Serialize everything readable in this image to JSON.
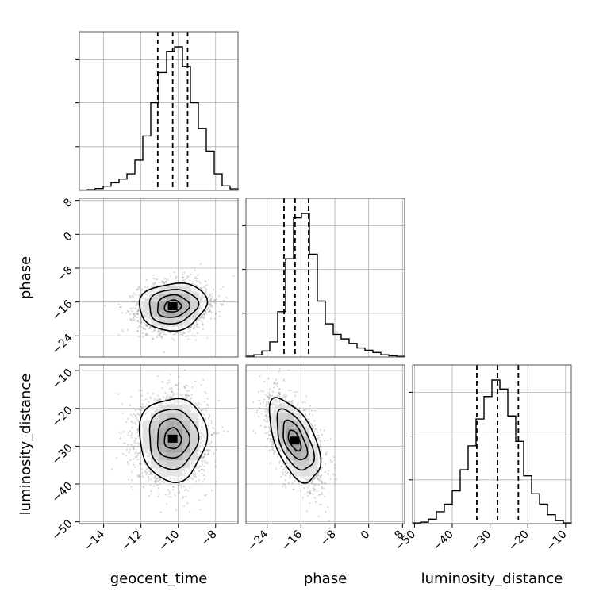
{
  "chart_data": {
    "type": "corner",
    "parameters": [
      "geocent_time",
      "phase",
      "luminosity_distance"
    ],
    "axis_labels": {
      "x": [
        "geocent_time",
        "phase",
        "luminosity_distance"
      ],
      "y": [
        "phase",
        "luminosity_distance"
      ]
    },
    "ranges": {
      "geocent_time": [
        -15.3,
        -6.8
      ],
      "phase": [
        -29,
        8.5
      ],
      "luminosity_distance": [
        -50.5,
        -8.5
      ]
    },
    "ticks": {
      "geocent_time": [
        -14,
        -12,
        -10,
        -8
      ],
      "phase": [
        -24,
        -16,
        -8,
        0,
        8
      ],
      "luminosity_distance": [
        -50,
        -40,
        -30,
        -20,
        -10
      ]
    },
    "quantiles": {
      "geocent_time": [
        -11.1,
        -10.3,
        -9.5
      ],
      "phase": [
        -20.0,
        -17.4,
        -14.2
      ],
      "luminosity_distance": [
        -33.5,
        -28.0,
        -22.5
      ]
    },
    "histograms": {
      "geocent_time": {
        "edges": [
          -15.3,
          -14.875,
          -14.45,
          -14.025,
          -13.6,
          -13.175,
          -12.75,
          -12.325,
          -11.9,
          -11.475,
          -11.05,
          -10.625,
          -10.2,
          -9.775,
          -9.35,
          -8.925,
          -8.5,
          -8.075,
          -7.65,
          -7.225,
          -6.8
        ],
        "counts": [
          0.002,
          0.005,
          0.012,
          0.028,
          0.05,
          0.075,
          0.11,
          0.2,
          0.36,
          0.58,
          0.78,
          0.92,
          0.95,
          0.82,
          0.58,
          0.41,
          0.26,
          0.11,
          0.03,
          0.01
        ]
      },
      "phase": {
        "edges": [
          -29,
          -27.125,
          -25.25,
          -23.375,
          -21.5,
          -19.625,
          -17.75,
          -15.875,
          -14.0,
          -12.125,
          -10.25,
          -8.375,
          -6.5,
          -4.625,
          -2.75,
          -0.875,
          1.0,
          2.875,
          4.75,
          6.625,
          8.5
        ],
        "counts": [
          0.005,
          0.015,
          0.04,
          0.1,
          0.3,
          0.65,
          0.92,
          0.95,
          0.68,
          0.37,
          0.22,
          0.15,
          0.12,
          0.09,
          0.06,
          0.045,
          0.03,
          0.015,
          0.008,
          0.004
        ]
      },
      "luminosity_distance": {
        "edges": [
          -50.5,
          -48.4,
          -46.3,
          -44.2,
          -42.1,
          -40.0,
          -37.9,
          -35.8,
          -33.7,
          -31.6,
          -29.5,
          -27.4,
          -25.3,
          -23.2,
          -21.1,
          -19.0,
          -16.9,
          -14.8,
          -12.7,
          -10.6,
          -8.5
        ],
        "counts": [
          0.005,
          0.01,
          0.03,
          0.08,
          0.13,
          0.22,
          0.36,
          0.52,
          0.7,
          0.85,
          0.96,
          0.9,
          0.72,
          0.55,
          0.32,
          0.2,
          0.13,
          0.06,
          0.02,
          0.005
        ]
      }
    },
    "joint": {
      "phase_vs_geocent_time": {
        "mean": [
          -10.3,
          -17.0
        ],
        "sd": [
          0.9,
          2.8
        ],
        "corr": 0.1
      },
      "luminosity_distance_vs_geocent_time": {
        "mean": [
          -10.3,
          -28.0
        ],
        "sd": [
          0.9,
          5.5
        ],
        "corr": 0.0
      },
      "luminosity_distance_vs_phase": {
        "mean": [
          -17.5,
          -28.5
        ],
        "sd": [
          3.0,
          5.5
        ],
        "corr": -0.55
      }
    },
    "grid": true,
    "colors": {
      "line": "#000000",
      "grid": "#b0b0b0",
      "scatter": "#8a8a8a"
    }
  }
}
